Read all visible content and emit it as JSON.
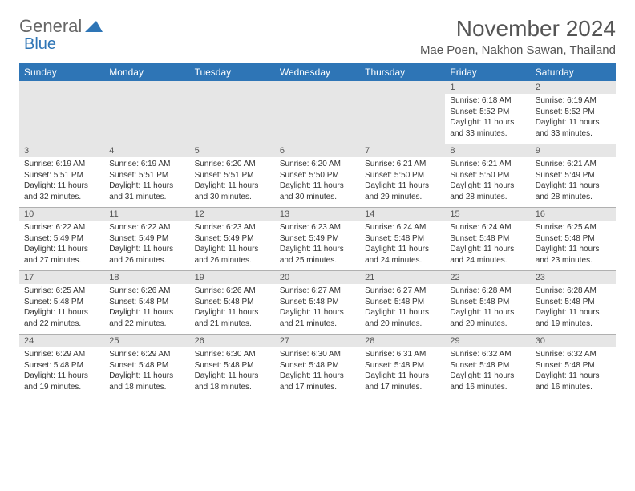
{
  "logo": {
    "text1": "General",
    "text2": "Blue"
  },
  "title": "November 2024",
  "location": "Mae Poen, Nakhon Sawan, Thailand",
  "weekdays": [
    "Sunday",
    "Monday",
    "Tuesday",
    "Wednesday",
    "Thursday",
    "Friday",
    "Saturday"
  ],
  "colors": {
    "header_bg": "#2e75b6",
    "header_text": "#ffffff",
    "daynum_bg": "#e6e6e6",
    "border": "#b0b0b0",
    "text": "#333333"
  },
  "weeks": [
    [
      null,
      null,
      null,
      null,
      null,
      {
        "n": "1",
        "sr": "Sunrise: 6:18 AM",
        "ss": "Sunset: 5:52 PM",
        "dl": "Daylight: 11 hours and 33 minutes."
      },
      {
        "n": "2",
        "sr": "Sunrise: 6:19 AM",
        "ss": "Sunset: 5:52 PM",
        "dl": "Daylight: 11 hours and 33 minutes."
      }
    ],
    [
      {
        "n": "3",
        "sr": "Sunrise: 6:19 AM",
        "ss": "Sunset: 5:51 PM",
        "dl": "Daylight: 11 hours and 32 minutes."
      },
      {
        "n": "4",
        "sr": "Sunrise: 6:19 AM",
        "ss": "Sunset: 5:51 PM",
        "dl": "Daylight: 11 hours and 31 minutes."
      },
      {
        "n": "5",
        "sr": "Sunrise: 6:20 AM",
        "ss": "Sunset: 5:51 PM",
        "dl": "Daylight: 11 hours and 30 minutes."
      },
      {
        "n": "6",
        "sr": "Sunrise: 6:20 AM",
        "ss": "Sunset: 5:50 PM",
        "dl": "Daylight: 11 hours and 30 minutes."
      },
      {
        "n": "7",
        "sr": "Sunrise: 6:21 AM",
        "ss": "Sunset: 5:50 PM",
        "dl": "Daylight: 11 hours and 29 minutes."
      },
      {
        "n": "8",
        "sr": "Sunrise: 6:21 AM",
        "ss": "Sunset: 5:50 PM",
        "dl": "Daylight: 11 hours and 28 minutes."
      },
      {
        "n": "9",
        "sr": "Sunrise: 6:21 AM",
        "ss": "Sunset: 5:49 PM",
        "dl": "Daylight: 11 hours and 28 minutes."
      }
    ],
    [
      {
        "n": "10",
        "sr": "Sunrise: 6:22 AM",
        "ss": "Sunset: 5:49 PM",
        "dl": "Daylight: 11 hours and 27 minutes."
      },
      {
        "n": "11",
        "sr": "Sunrise: 6:22 AM",
        "ss": "Sunset: 5:49 PM",
        "dl": "Daylight: 11 hours and 26 minutes."
      },
      {
        "n": "12",
        "sr": "Sunrise: 6:23 AM",
        "ss": "Sunset: 5:49 PM",
        "dl": "Daylight: 11 hours and 26 minutes."
      },
      {
        "n": "13",
        "sr": "Sunrise: 6:23 AM",
        "ss": "Sunset: 5:49 PM",
        "dl": "Daylight: 11 hours and 25 minutes."
      },
      {
        "n": "14",
        "sr": "Sunrise: 6:24 AM",
        "ss": "Sunset: 5:48 PM",
        "dl": "Daylight: 11 hours and 24 minutes."
      },
      {
        "n": "15",
        "sr": "Sunrise: 6:24 AM",
        "ss": "Sunset: 5:48 PM",
        "dl": "Daylight: 11 hours and 24 minutes."
      },
      {
        "n": "16",
        "sr": "Sunrise: 6:25 AM",
        "ss": "Sunset: 5:48 PM",
        "dl": "Daylight: 11 hours and 23 minutes."
      }
    ],
    [
      {
        "n": "17",
        "sr": "Sunrise: 6:25 AM",
        "ss": "Sunset: 5:48 PM",
        "dl": "Daylight: 11 hours and 22 minutes."
      },
      {
        "n": "18",
        "sr": "Sunrise: 6:26 AM",
        "ss": "Sunset: 5:48 PM",
        "dl": "Daylight: 11 hours and 22 minutes."
      },
      {
        "n": "19",
        "sr": "Sunrise: 6:26 AM",
        "ss": "Sunset: 5:48 PM",
        "dl": "Daylight: 11 hours and 21 minutes."
      },
      {
        "n": "20",
        "sr": "Sunrise: 6:27 AM",
        "ss": "Sunset: 5:48 PM",
        "dl": "Daylight: 11 hours and 21 minutes."
      },
      {
        "n": "21",
        "sr": "Sunrise: 6:27 AM",
        "ss": "Sunset: 5:48 PM",
        "dl": "Daylight: 11 hours and 20 minutes."
      },
      {
        "n": "22",
        "sr": "Sunrise: 6:28 AM",
        "ss": "Sunset: 5:48 PM",
        "dl": "Daylight: 11 hours and 20 minutes."
      },
      {
        "n": "23",
        "sr": "Sunrise: 6:28 AM",
        "ss": "Sunset: 5:48 PM",
        "dl": "Daylight: 11 hours and 19 minutes."
      }
    ],
    [
      {
        "n": "24",
        "sr": "Sunrise: 6:29 AM",
        "ss": "Sunset: 5:48 PM",
        "dl": "Daylight: 11 hours and 19 minutes."
      },
      {
        "n": "25",
        "sr": "Sunrise: 6:29 AM",
        "ss": "Sunset: 5:48 PM",
        "dl": "Daylight: 11 hours and 18 minutes."
      },
      {
        "n": "26",
        "sr": "Sunrise: 6:30 AM",
        "ss": "Sunset: 5:48 PM",
        "dl": "Daylight: 11 hours and 18 minutes."
      },
      {
        "n": "27",
        "sr": "Sunrise: 6:30 AM",
        "ss": "Sunset: 5:48 PM",
        "dl": "Daylight: 11 hours and 17 minutes."
      },
      {
        "n": "28",
        "sr": "Sunrise: 6:31 AM",
        "ss": "Sunset: 5:48 PM",
        "dl": "Daylight: 11 hours and 17 minutes."
      },
      {
        "n": "29",
        "sr": "Sunrise: 6:32 AM",
        "ss": "Sunset: 5:48 PM",
        "dl": "Daylight: 11 hours and 16 minutes."
      },
      {
        "n": "30",
        "sr": "Sunrise: 6:32 AM",
        "ss": "Sunset: 5:48 PM",
        "dl": "Daylight: 11 hours and 16 minutes."
      }
    ]
  ]
}
